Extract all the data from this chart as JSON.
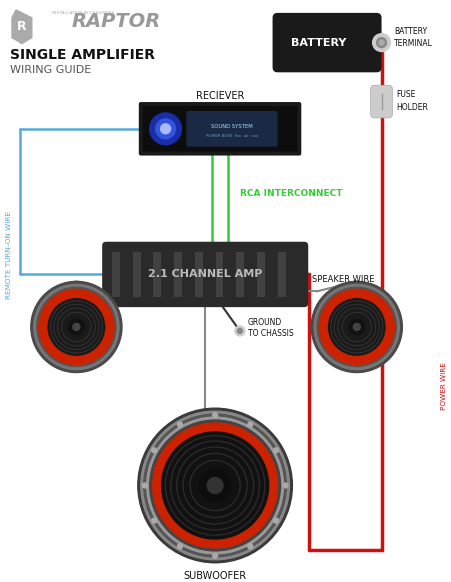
{
  "bg_color": "#ffffff",
  "title1": "SINGLE AMPLIFIER",
  "title2": "WIRING GUIDE",
  "amp_label": "2.1 CHANNEL AMP",
  "battery_label": "BATTERY",
  "battery_terminal_label": "BATTERY\nTERMINAL",
  "fuse_label": "FUSE\nHOLDER",
  "receiver_label": "RECIEVER",
  "rca_label": "RCA INTERCONNECT",
  "speaker_wire_label": "SPEAKER WIRE",
  "ground_label": "GROUND\nTO CHASSIS",
  "remote_label": "REMOTE TURN-ON WIRE",
  "power_wire_label": "POWER WIRE",
  "subwoofer_label": "SUBWOOFER",
  "wire_red": "#cc1111",
  "wire_green": "#33cc33",
  "wire_blue": "#55aadd",
  "wire_gray": "#888888",
  "amp_dark": "#2a2a2a",
  "amp_stripe": "#444444",
  "amp_text": "#bbbbbb",
  "battery_bg": "#1a1a1a",
  "speaker_red": "#cc2200",
  "speaker_gray": "#666666",
  "fuse_color": "#cccccc",
  "recv_bg": "#111111",
  "recv_blue": "#2244cc",
  "recv_display": "#1a2a44"
}
